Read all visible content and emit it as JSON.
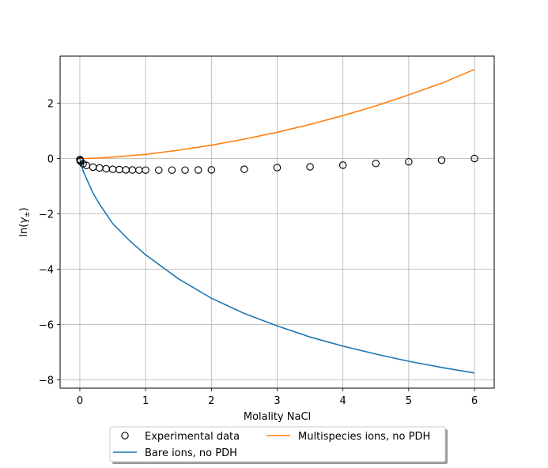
{
  "chart_data": {
    "type": "line",
    "title": "",
    "xlabel": "Molality NaCl",
    "ylabel_prefix": "ln(",
    "ylabel_symbol": "γ",
    "ylabel_subscript": "±",
    "ylabel_suffix": ")",
    "xlim": [
      -0.3,
      6.3
    ],
    "ylim": [
      -8.3,
      3.7
    ],
    "xticks": [
      0,
      1,
      2,
      3,
      4,
      5,
      6
    ],
    "yticks": [
      -8,
      -6,
      -4,
      -2,
      0,
      2
    ],
    "grid": true,
    "legend_position": "bottom-center, below plot",
    "series": [
      {
        "name": "Experimental data",
        "kind": "scatter",
        "marker": "open-circle",
        "color": "#000000",
        "x": [
          0.001,
          0.005,
          0.01,
          0.05,
          0.1,
          0.2,
          0.3,
          0.4,
          0.5,
          0.6,
          0.7,
          0.8,
          0.9,
          1.0,
          1.2,
          1.4,
          1.6,
          1.8,
          2.0,
          2.5,
          3.0,
          3.5,
          4.0,
          4.5,
          5.0,
          5.5,
          6.0
        ],
        "y": [
          -0.034,
          -0.074,
          -0.1,
          -0.19,
          -0.25,
          -0.31,
          -0.34,
          -0.37,
          -0.39,
          -0.4,
          -0.41,
          -0.415,
          -0.42,
          -0.42,
          -0.42,
          -0.42,
          -0.42,
          -0.415,
          -0.41,
          -0.39,
          -0.33,
          -0.3,
          -0.24,
          -0.18,
          -0.12,
          -0.06,
          0.0
        ]
      },
      {
        "name": "Bare ions, no PDH",
        "kind": "line",
        "color": "#1f77b4",
        "x": [
          0,
          0.01,
          0.05,
          0.1,
          0.2,
          0.3,
          0.5,
          0.75,
          1.0,
          1.5,
          2.0,
          2.5,
          3.0,
          3.5,
          4.0,
          4.5,
          5.0,
          5.5,
          6.0
        ],
        "y": [
          0.0,
          -0.1,
          -0.45,
          -0.72,
          -1.25,
          -1.65,
          -2.35,
          -2.95,
          -3.48,
          -4.35,
          -5.05,
          -5.6,
          -6.05,
          -6.45,
          -6.78,
          -7.07,
          -7.33,
          -7.55,
          -7.75
        ]
      },
      {
        "name": "Multispecies ions, no PDH",
        "kind": "line",
        "color": "#ff7f0e",
        "x": [
          0,
          0.1,
          0.25,
          0.5,
          0.75,
          1.0,
          1.5,
          2.0,
          2.5,
          3.0,
          3.5,
          4.0,
          4.5,
          5.0,
          5.5,
          6.0
        ],
        "y": [
          0.0,
          0.0,
          0.01,
          0.05,
          0.1,
          0.15,
          0.3,
          0.48,
          0.7,
          0.95,
          1.23,
          1.55,
          1.9,
          2.3,
          2.72,
          3.22
        ]
      }
    ],
    "legend": [
      {
        "label": "Experimental data",
        "series": 0
      },
      {
        "label": "Multispecies ions, no PDH",
        "series": 2
      },
      {
        "label": "Bare ions, no PDH",
        "series": 1
      }
    ]
  }
}
